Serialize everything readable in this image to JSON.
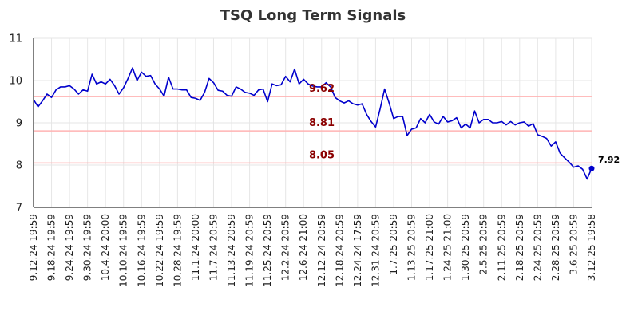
{
  "chart_data": {
    "type": "line",
    "title": "TSQ Long Term Signals",
    "xlabel": "",
    "ylabel": "",
    "ylim": [
      7,
      11
    ],
    "yticks": [
      "7",
      "8",
      "9",
      "10",
      "11"
    ],
    "grid": true,
    "x_tick_labels": [
      "9.12.24 19:59",
      "9.18.24 19:59",
      "9.24.24 19:59",
      "9.30.24 19:59",
      "10.4.24 20:00",
      "10.10.24 19:59",
      "10.16.24 19:59",
      "10.22.24 19:59",
      "10.28.24 19:59",
      "11.1.24 20:00",
      "11.7.24 20:59",
      "11.13.24 20:59",
      "11.19.24 20:59",
      "11.25.24 20:59",
      "12.2.24 20:59",
      "12.6.24 21:00",
      "12.12.24 20:59",
      "12.18.24 20:59",
      "12.24.24 17:59",
      "12.31.24 20:59",
      "1.7.25 20:59",
      "1.13.25 20:59",
      "1.17.25 21:00",
      "1.24.25 21:00",
      "1.30.25 20:59",
      "2.5.25 20:59",
      "2.11.25 20:59",
      "2.18.25 20:59",
      "2.24.25 20:59",
      "2.28.25 20:59",
      "3.6.25 20:59",
      "3.12.25 19:58"
    ],
    "series": [
      {
        "values": [
          9.55,
          9.38,
          9.52,
          9.68,
          9.6,
          9.78,
          9.85,
          9.85,
          9.88,
          9.8,
          9.68,
          9.78,
          9.75,
          10.15,
          9.92,
          9.97,
          9.92,
          10.03,
          9.88,
          9.68,
          9.83,
          10.05,
          10.3,
          10.0,
          10.2,
          10.1,
          10.12,
          9.92,
          9.8,
          9.63,
          10.08,
          9.8,
          9.8,
          9.78,
          9.78,
          9.6,
          9.58,
          9.53,
          9.72,
          10.05,
          9.95,
          9.77,
          9.75,
          9.65,
          9.63,
          9.85,
          9.8,
          9.72,
          9.7,
          9.65,
          9.78,
          9.8,
          9.5,
          9.92,
          9.88,
          9.9,
          10.1,
          9.97,
          10.27,
          9.92,
          10.03,
          9.92,
          9.87,
          9.85,
          9.85,
          9.95,
          9.85,
          9.6,
          9.52,
          9.47,
          9.52,
          9.45,
          9.42,
          9.45,
          9.2,
          9.03,
          8.9,
          9.33,
          9.8,
          9.47,
          9.1,
          9.15,
          9.15,
          8.7,
          8.85,
          8.88,
          9.1,
          9.0,
          9.2,
          9.02,
          8.97,
          9.15,
          9.02,
          9.05,
          9.12,
          8.88,
          8.97,
          8.88,
          9.28,
          9.0,
          9.08,
          9.08,
          9.0,
          9.0,
          9.03,
          8.95,
          9.03,
          8.95,
          9.0,
          9.02,
          8.92,
          8.98,
          8.72,
          8.68,
          8.63,
          8.45,
          8.55,
          8.28,
          8.17,
          8.07,
          7.95,
          7.98,
          7.9,
          7.67,
          7.92
        ]
      }
    ],
    "horizontal_lines": [
      {
        "value": 9.62,
        "label": "9.62"
      },
      {
        "value": 8.81,
        "label": "8.81"
      },
      {
        "value": 8.05,
        "label": "8.05"
      }
    ],
    "last_value_label": "7.92",
    "colors": {
      "line": "#0000cc",
      "horizontal_lines": "#ffb3b3",
      "horizontal_labels": "#8b0000",
      "grid": "#e6e6e6"
    }
  }
}
